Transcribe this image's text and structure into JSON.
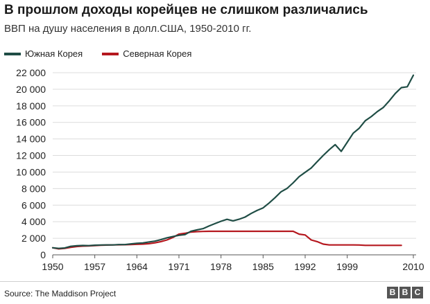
{
  "header": {
    "title": "В прошлом доходы корейцев не слишком различались",
    "subtitle": "ВВП на душу населения в долл.США, 1950-2010 гг."
  },
  "footer": {
    "source": "Source: The Maddison Project",
    "logo_letters": [
      "B",
      "B",
      "C"
    ]
  },
  "chart_data": {
    "type": "line",
    "title": "В прошлом доходы корейцев не слишком различались",
    "subtitle": "ВВП на душу населения в долл.США, 1950-2010 гг.",
    "xlabel": "",
    "ylabel": "",
    "xlim": [
      1950,
      2010
    ],
    "ylim": [
      0,
      22000
    ],
    "x_ticks": [
      1950,
      1957,
      1964,
      1971,
      1978,
      1985,
      1992,
      1999,
      2010
    ],
    "x_tick_labels": [
      "1950",
      "1957",
      "1964",
      "1971",
      "1978",
      "1985",
      "1992",
      "1999",
      "2010"
    ],
    "y_ticks": [
      0,
      2000,
      4000,
      6000,
      8000,
      10000,
      12000,
      14000,
      16000,
      18000,
      20000,
      22000
    ],
    "y_tick_labels": [
      "0",
      "2 000",
      "4 000",
      "6 000",
      "8 000",
      "10 000",
      "12 000",
      "14 000",
      "16 000",
      "18 000",
      "20 000",
      "22 000"
    ],
    "grid": "horizontal",
    "legend": "top-left",
    "series": [
      {
        "name": "Южная Корея",
        "color": "#1f4d45",
        "x": [
          1950,
          1951,
          1952,
          1953,
          1954,
          1955,
          1956,
          1957,
          1958,
          1959,
          1960,
          1961,
          1962,
          1963,
          1964,
          1965,
          1966,
          1967,
          1968,
          1969,
          1970,
          1971,
          1972,
          1973,
          1974,
          1975,
          1976,
          1977,
          1978,
          1979,
          1980,
          1981,
          1982,
          1983,
          1984,
          1985,
          1986,
          1987,
          1988,
          1989,
          1990,
          1991,
          1992,
          1993,
          1994,
          1995,
          1996,
          1997,
          1998,
          1999,
          2000,
          2001,
          2002,
          2003,
          2004,
          2005,
          2006,
          2007,
          2008,
          2009,
          2010
        ],
        "values": [
          850,
          780,
          830,
          1030,
          1100,
          1130,
          1110,
          1160,
          1190,
          1200,
          1200,
          1240,
          1240,
          1320,
          1400,
          1440,
          1560,
          1660,
          1830,
          2060,
          2210,
          2360,
          2440,
          2850,
          3020,
          3160,
          3480,
          3770,
          4060,
          4290,
          4110,
          4300,
          4560,
          4990,
          5360,
          5670,
          6260,
          6920,
          7620,
          8030,
          8700,
          9440,
          9970,
          10490,
          11250,
          12000,
          12700,
          13310,
          12500,
          13600,
          14700,
          15300,
          16200,
          16700,
          17300,
          17800,
          18600,
          19500,
          20200,
          20300,
          21700
        ]
      },
      {
        "name": "Северная Корея",
        "color": "#b5171e",
        "x": [
          1950,
          1951,
          1952,
          1953,
          1954,
          1955,
          1956,
          1957,
          1958,
          1959,
          1960,
          1961,
          1962,
          1963,
          1964,
          1965,
          1966,
          1967,
          1968,
          1969,
          1970,
          1971,
          1972,
          1973,
          1974,
          1975,
          1976,
          1977,
          1978,
          1979,
          1980,
          1981,
          1982,
          1983,
          1984,
          1985,
          1986,
          1987,
          1988,
          1989,
          1990,
          1991,
          1992,
          1993,
          1994,
          1995,
          1996,
          1997,
          1998,
          1999,
          2000,
          2001,
          2002,
          2003,
          2004,
          2005,
          2006,
          2007,
          2008
        ],
        "values": [
          850,
          720,
          780,
          900,
          1000,
          1050,
          1080,
          1120,
          1160,
          1180,
          1200,
          1210,
          1220,
          1250,
          1270,
          1300,
          1350,
          1450,
          1600,
          1800,
          2100,
          2500,
          2600,
          2750,
          2800,
          2830,
          2840,
          2841,
          2841,
          2841,
          2841,
          2841,
          2841,
          2841,
          2841,
          2841,
          2841,
          2841,
          2841,
          2841,
          2841,
          2500,
          2400,
          1800,
          1600,
          1300,
          1200,
          1200,
          1200,
          1200,
          1200,
          1190,
          1150,
          1150,
          1150,
          1150,
          1150,
          1150,
          1150
        ]
      }
    ]
  }
}
